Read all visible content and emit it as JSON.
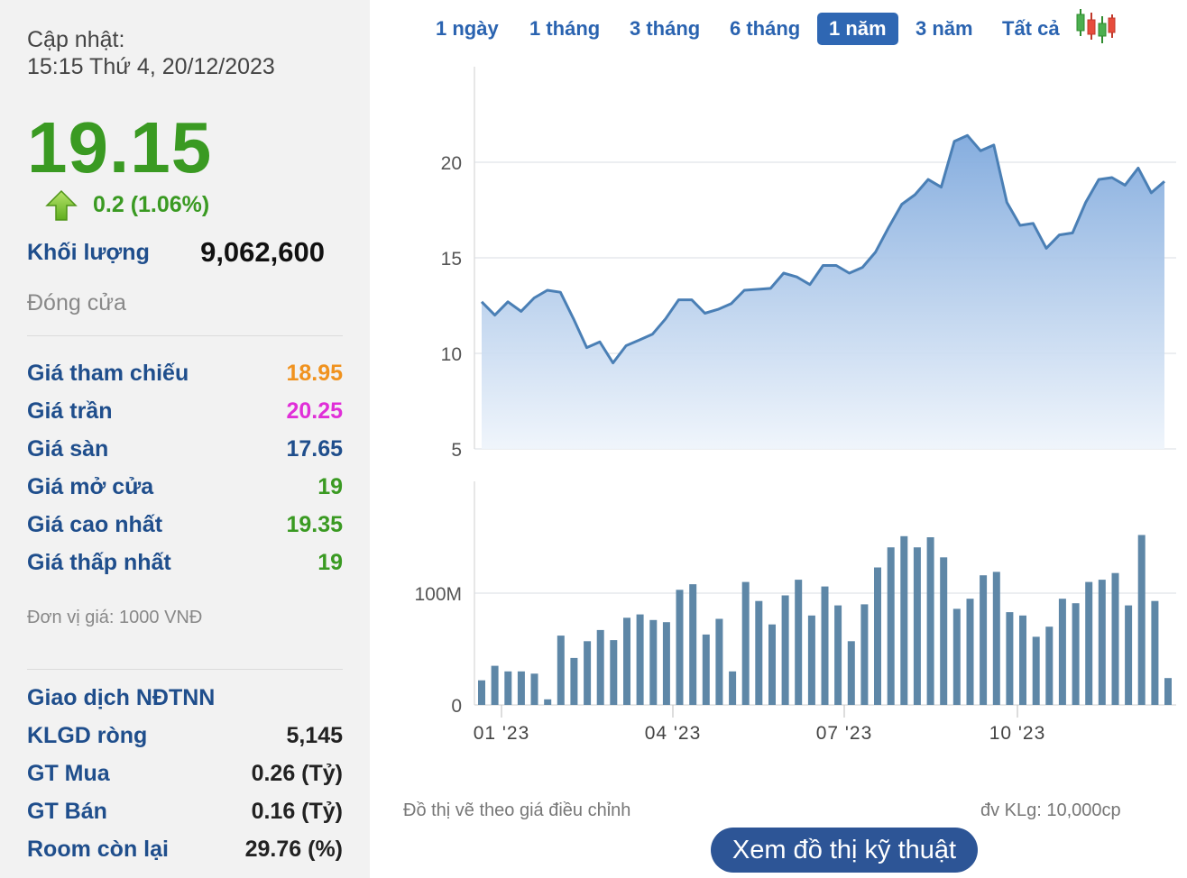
{
  "quote": {
    "updated_label": "Cập nhật:",
    "updated_time": "15:15 Thứ 4, 20/12/2023",
    "price": "19.15",
    "change": "0.2 (1.06%)",
    "volume_label": "Khối lượng",
    "volume": "9,062,600",
    "status": "Đóng cửa",
    "up_color": "#3a9a22",
    "arrow_icon": "up-arrow-icon"
  },
  "prices": [
    {
      "label": "Giá tham chiếu",
      "value": "18.95",
      "color": "#f0921e"
    },
    {
      "label": "Giá trần",
      "value": "20.25",
      "color": "#e02fd8"
    },
    {
      "label": "Giá sàn",
      "value": "17.65",
      "color": "#1f4e8c"
    },
    {
      "label": "Giá mở cửa",
      "value": "19",
      "color": "#3a9a22"
    },
    {
      "label": "Giá cao nhất",
      "value": "19.35",
      "color": "#3a9a22"
    },
    {
      "label": "Giá thấp nhất",
      "value": "19",
      "color": "#3a9a22"
    }
  ],
  "unit_note": "Đơn vị giá: 1000 VNĐ",
  "foreign": {
    "title": "Giao dịch NĐTNN",
    "rows": [
      {
        "label": "KLGD ròng",
        "value": "5,145"
      },
      {
        "label": "GT Mua",
        "value": "0.26 (Tỷ)"
      },
      {
        "label": "GT Bán",
        "value": "0.16 (Tỷ)"
      },
      {
        "label": "Room còn lại",
        "value": "29.76 (%)"
      }
    ]
  },
  "tabs": [
    {
      "label": "1 ngày",
      "active": false
    },
    {
      "label": "1 tháng",
      "active": false
    },
    {
      "label": "3 tháng",
      "active": false
    },
    {
      "label": "6 tháng",
      "active": false
    },
    {
      "label": "1 năm",
      "active": true
    },
    {
      "label": "3 năm",
      "active": false
    },
    {
      "label": "Tất cả",
      "active": false
    }
  ],
  "candlestick_icon": "candlestick-icon",
  "chart_note": "Đồ thị vẽ theo giá điều chỉnh",
  "volume_unit_note": "đv KLg: 10,000cp",
  "tech_button": "Xem đồ thị kỹ thuật",
  "chart_data": [
    {
      "type": "area",
      "x_ticks": [
        "01 '23",
        "04 '23",
        "07 '23",
        "10 '23"
      ],
      "y_ticks": [
        5,
        10,
        15,
        20
      ],
      "ylim": [
        5,
        25
      ],
      "grid": true,
      "line_color": "#4a7fb5",
      "series": [
        {
          "values": [
            12.7,
            12.0,
            12.7,
            12.2,
            12.9,
            13.3,
            13.2,
            11.8,
            10.3,
            10.6,
            9.5,
            10.4,
            10.7,
            11.0,
            11.8,
            12.8,
            12.8,
            12.1,
            12.3,
            12.6,
            13.3,
            13.35,
            13.4,
            14.2,
            14.0,
            13.6,
            14.6,
            14.6,
            14.2,
            14.5,
            15.3,
            16.6,
            17.8,
            18.3,
            19.1,
            18.7,
            21.1,
            21.4,
            20.6,
            20.9,
            17.9,
            16.7,
            16.8,
            15.5,
            16.2,
            16.3,
            17.9,
            19.1,
            19.2,
            18.8,
            19.7,
            18.4,
            19.0
          ]
        }
      ]
    },
    {
      "type": "bar",
      "x_ticks": [
        "01 '23",
        "04 '23",
        "07 '23",
        "10 '23"
      ],
      "y_ticks": [
        0,
        100
      ],
      "y_tick_labels": [
        "0",
        "100M"
      ],
      "ylim": [
        0,
        200
      ],
      "grid": true,
      "bar_color": "#5e87a7",
      "series": [
        {
          "values": [
            22,
            35,
            30,
            30,
            28,
            5,
            62,
            42,
            57,
            67,
            58,
            78,
            81,
            76,
            74,
            103,
            108,
            63,
            77,
            30,
            110,
            93,
            72,
            98,
            112,
            80,
            106,
            89,
            57,
            90,
            123,
            141,
            151,
            141,
            150,
            132,
            86,
            95,
            116,
            119,
            83,
            80,
            61,
            70,
            95,
            91,
            110,
            112,
            118,
            89,
            152,
            93,
            24
          ]
        }
      ]
    }
  ]
}
